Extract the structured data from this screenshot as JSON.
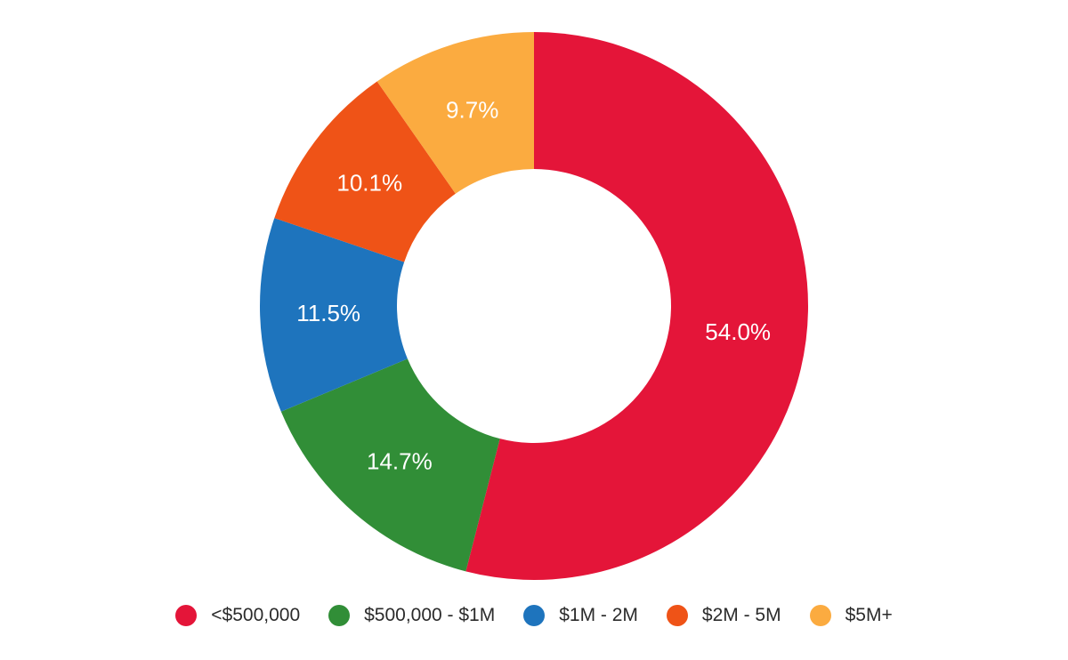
{
  "chart_data": {
    "type": "pie",
    "donut": true,
    "title": "",
    "legend_position": "bottom",
    "slices": [
      {
        "name": "<$500,000",
        "value": 54.0,
        "label": "54.0%",
        "color": "#e41539"
      },
      {
        "name": "$500,000 - $1M",
        "value": 14.7,
        "label": "14.7%",
        "color": "#318e37"
      },
      {
        "name": "$1M - 2M",
        "value": 11.5,
        "label": "11.5%",
        "color": "#1e74bd"
      },
      {
        "name": "$2M - 5M",
        "value": 10.1,
        "label": "10.1%",
        "color": "#ef5317"
      },
      {
        "name": "$5M+",
        "value": 9.7,
        "label": "9.7%",
        "color": "#fbab40"
      }
    ]
  }
}
